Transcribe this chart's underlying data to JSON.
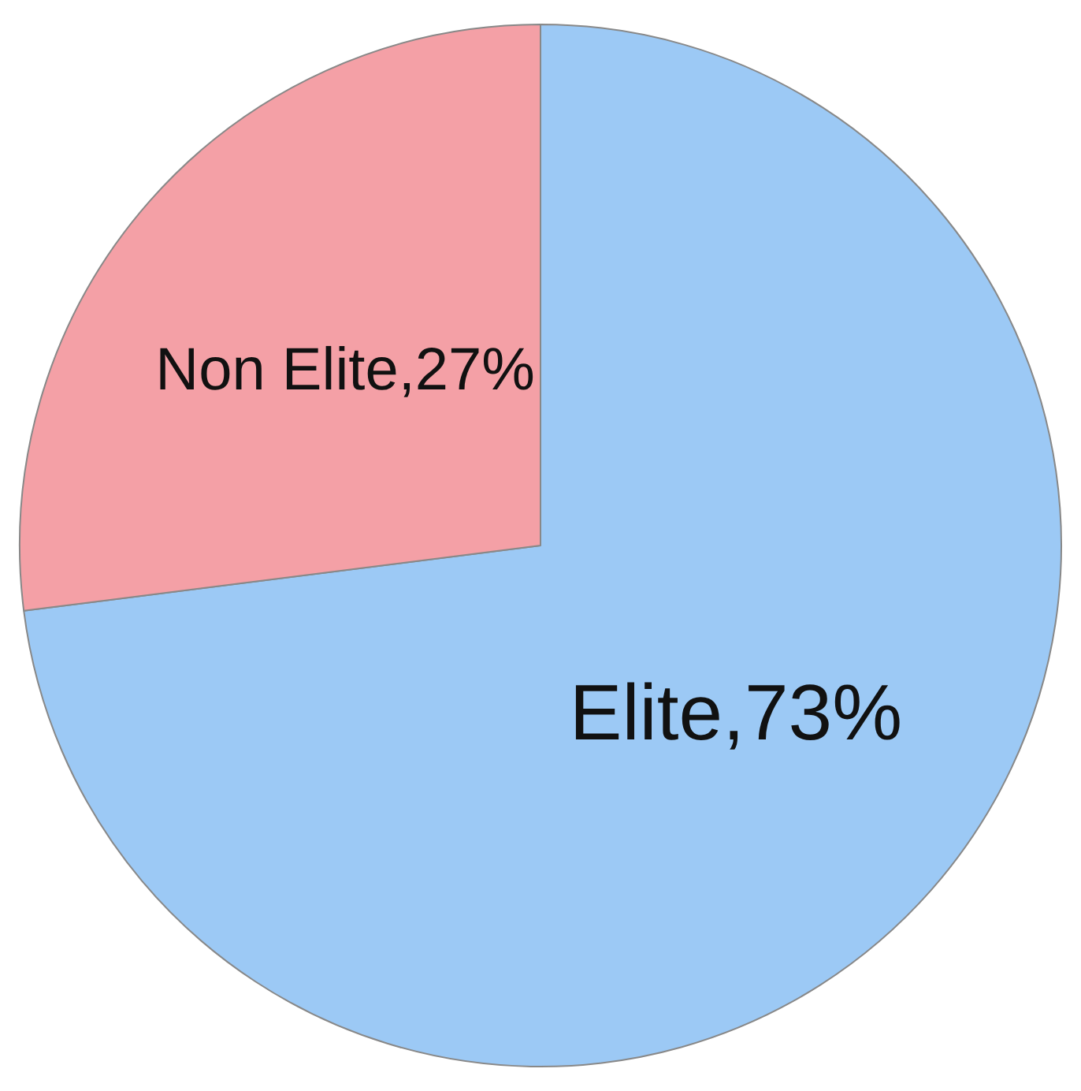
{
  "chart_data": {
    "type": "pie",
    "categories": [
      "Elite",
      "Non Elite"
    ],
    "values": [
      73,
      27
    ],
    "value_labels": [
      "73%",
      "27%"
    ],
    "colors": [
      "#9cc9f5",
      "#f4a0a6"
    ],
    "legend": false
  }
}
